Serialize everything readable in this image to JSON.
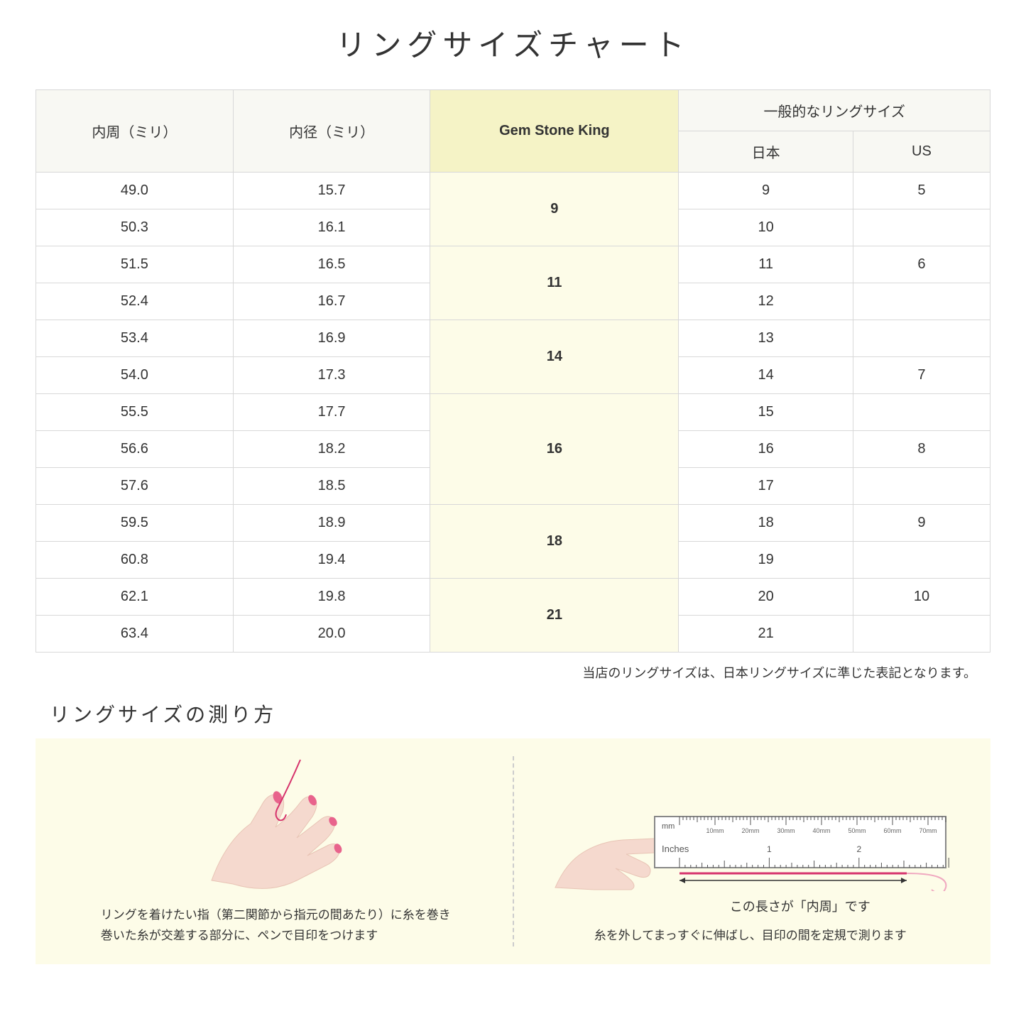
{
  "title": "リングサイズチャート",
  "headers": {
    "circumference": "内周（ミリ）",
    "diameter": "内径（ミリ）",
    "brand": "Gem Stone King",
    "general": "一般的なリングサイズ",
    "japan": "日本",
    "us": "US"
  },
  "rows": [
    {
      "circ": "49.0",
      "dia": "15.7",
      "gsk": "9",
      "gsk_span": 2,
      "jp": "9",
      "us": "5"
    },
    {
      "circ": "50.3",
      "dia": "16.1",
      "jp": "10",
      "us": ""
    },
    {
      "circ": "51.5",
      "dia": "16.5",
      "gsk": "11",
      "gsk_span": 2,
      "jp": "11",
      "us": "6"
    },
    {
      "circ": "52.4",
      "dia": "16.7",
      "jp": "12",
      "us": ""
    },
    {
      "circ": "53.4",
      "dia": "16.9",
      "gsk": "14",
      "gsk_span": 2,
      "jp": "13",
      "us": ""
    },
    {
      "circ": "54.0",
      "dia": "17.3",
      "jp": "14",
      "us": "7"
    },
    {
      "circ": "55.5",
      "dia": "17.7",
      "gsk": "16",
      "gsk_span": 3,
      "jp": "15",
      "us": ""
    },
    {
      "circ": "56.6",
      "dia": "18.2",
      "jp": "16",
      "us": "8"
    },
    {
      "circ": "57.6",
      "dia": "18.5",
      "jp": "17",
      "us": ""
    },
    {
      "circ": "59.5",
      "dia": "18.9",
      "gsk": "18",
      "gsk_span": 2,
      "jp": "18",
      "us": "9"
    },
    {
      "circ": "60.8",
      "dia": "19.4",
      "jp": "19",
      "us": ""
    },
    {
      "circ": "62.1",
      "dia": "19.8",
      "gsk": "21",
      "gsk_span": 2,
      "jp": "20",
      "us": "10"
    },
    {
      "circ": "63.4",
      "dia": "20.0",
      "jp": "21",
      "us": ""
    }
  ],
  "note": "当店のリングサイズは、日本リングサイズに準じた表記となります。",
  "subtitle": "リングサイズの測り方",
  "howto": {
    "left_text": "リングを着けたい指（第二関節から指元の間あたり）に糸を巻き\n巻いた糸が交差する部分に、ペンで目印をつけます",
    "right_text": "糸を外してまっすぐに伸ばし、目印の間を定規で測ります",
    "measure_label": "この長さが「内周」です",
    "ruler_mm": "mm",
    "ruler_inches": "Inches",
    "ruler_ticks_mm": [
      "10mm",
      "20mm",
      "30mm",
      "40mm",
      "50mm",
      "60mm",
      "70mm"
    ],
    "ruler_ticks_in": [
      "1",
      "2"
    ]
  },
  "colors": {
    "header_bg": "#f8f8f3",
    "highlight_header_bg": "#f5f3c6",
    "highlight_cell_bg": "#fdfce8",
    "border": "#d8d8d8",
    "howto_bg": "#fdfce8",
    "hand_skin": "#f5d9ce",
    "hand_nail": "#e8638c",
    "thread": "#d6336c",
    "ruler_border": "#888"
  }
}
